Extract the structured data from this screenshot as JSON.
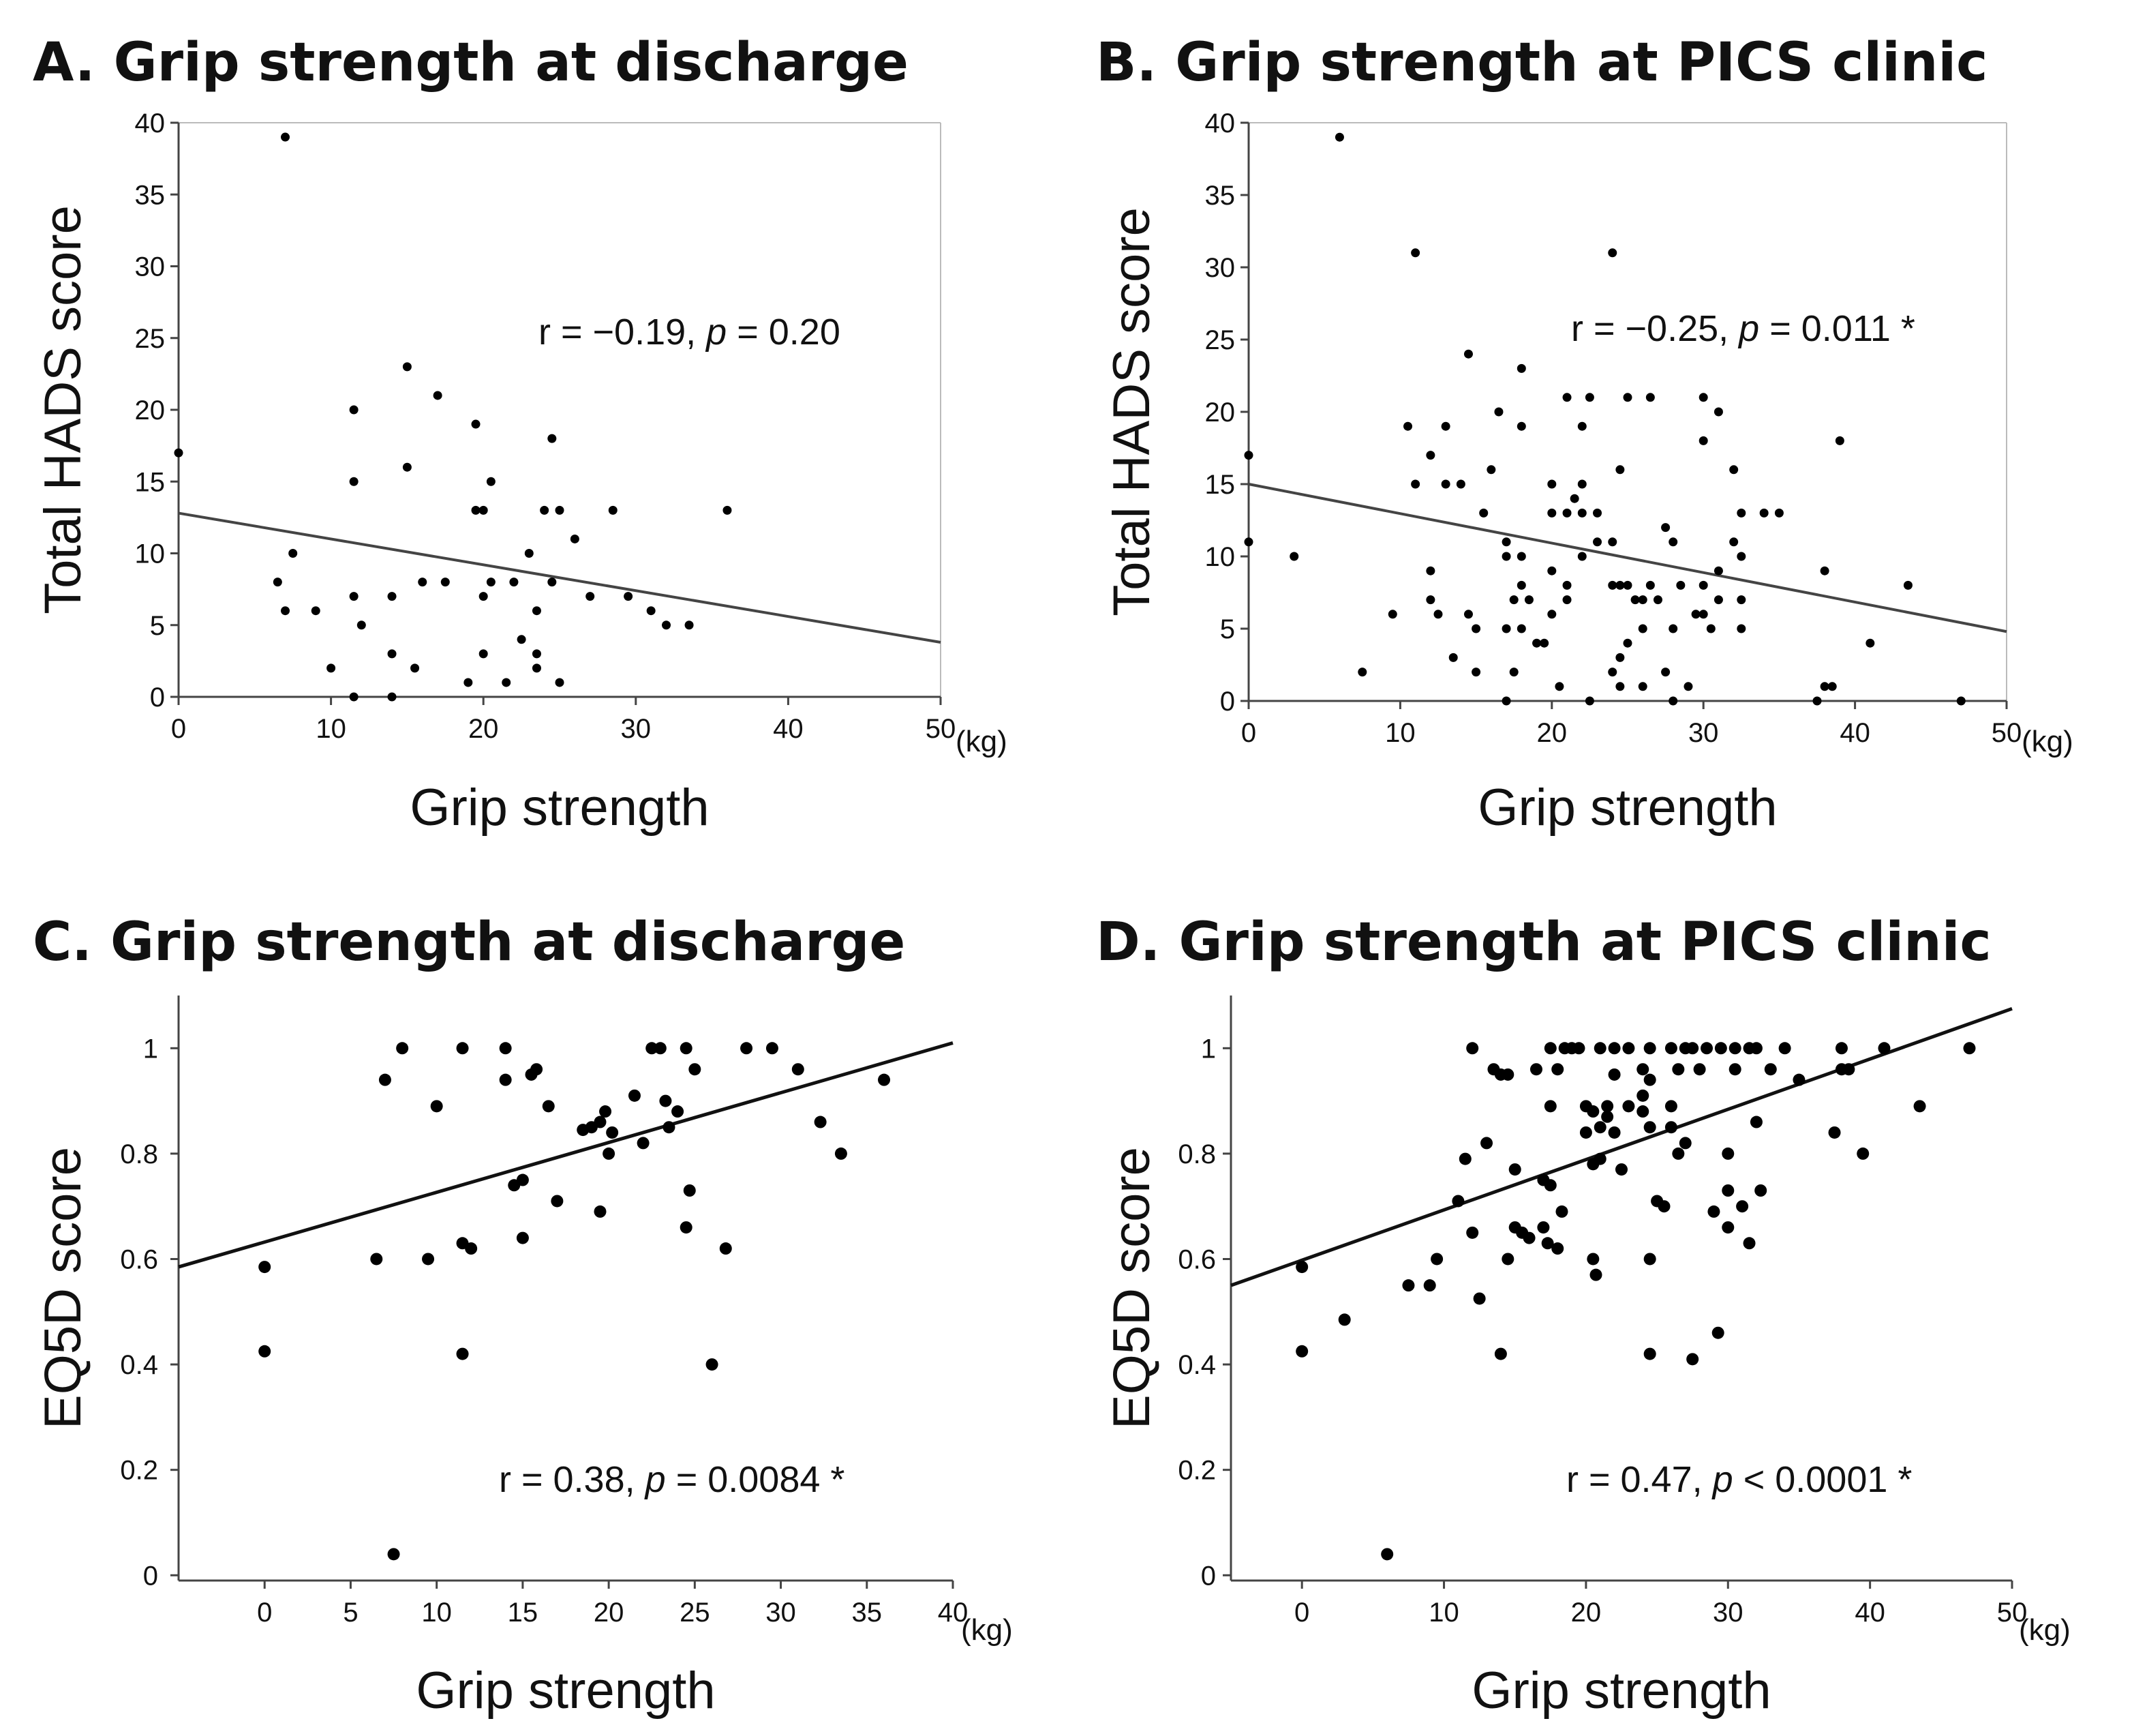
{
  "chart_data": [
    {
      "id": "A",
      "type": "scatter",
      "title": "A. Grip strength at discharge",
      "xlabel": "Grip strength",
      "ylabel": "Total HADS score",
      "x_unit": "(kg)",
      "xlim": [
        0,
        50
      ],
      "ylim": [
        0,
        40
      ],
      "xticks": [
        0,
        10,
        20,
        30,
        40,
        50
      ],
      "yticks": [
        0,
        5,
        10,
        15,
        20,
        25,
        30,
        35,
        40
      ],
      "ytick_labels": [
        "0",
        "5",
        "10",
        "15",
        "20",
        "25",
        "30",
        "35",
        "40"
      ],
      "grid": false,
      "annotation": {
        "r_text": "r = −0.19, ",
        "p_symbol": "p",
        "p_text": " = 0.20",
        "sig": ""
      },
      "fit_line": {
        "x": [
          0,
          50
        ],
        "y": [
          12.8,
          3.8
        ]
      },
      "points": [
        [
          0,
          17
        ],
        [
          7,
          39
        ],
        [
          6.5,
          8
        ],
        [
          7,
          6
        ],
        [
          7.5,
          10
        ],
        [
          9,
          6
        ],
        [
          10,
          2
        ],
        [
          11.5,
          20
        ],
        [
          11.5,
          15
        ],
        [
          11.5,
          7
        ],
        [
          11.5,
          0
        ],
        [
          12,
          5
        ],
        [
          14,
          3
        ],
        [
          14,
          7
        ],
        [
          14,
          0
        ],
        [
          15,
          23
        ],
        [
          15,
          16
        ],
        [
          15.5,
          2
        ],
        [
          16,
          8
        ],
        [
          17,
          21
        ],
        [
          17.5,
          8
        ],
        [
          19,
          1
        ],
        [
          19.5,
          19
        ],
        [
          19.5,
          13
        ],
        [
          20,
          13
        ],
        [
          20,
          7
        ],
        [
          20,
          3
        ],
        [
          20.5,
          8
        ],
        [
          20.5,
          15
        ],
        [
          21.5,
          1
        ],
        [
          22,
          8
        ],
        [
          22.5,
          4
        ],
        [
          23,
          10
        ],
        [
          23.5,
          2
        ],
        [
          24,
          13
        ],
        [
          24.5,
          18
        ],
        [
          24.5,
          8
        ],
        [
          25,
          13
        ],
        [
          25,
          1
        ],
        [
          26,
          11
        ],
        [
          27,
          7
        ],
        [
          28.5,
          13
        ],
        [
          29.5,
          7
        ],
        [
          31,
          6
        ],
        [
          32,
          5
        ],
        [
          33.5,
          5
        ],
        [
          36,
          13
        ],
        [
          23.5,
          6
        ],
        [
          23.5,
          3
        ]
      ]
    },
    {
      "id": "B",
      "type": "scatter",
      "title": "B. Grip strength at PICS clinic",
      "xlabel": "Grip strength",
      "ylabel": "Total HADS score",
      "x_unit": "(kg)",
      "xlim": [
        0,
        50
      ],
      "ylim": [
        0,
        40
      ],
      "xticks": [
        0,
        10,
        20,
        30,
        40,
        50
      ],
      "yticks": [
        0,
        5,
        10,
        15,
        20,
        25,
        30,
        35,
        40
      ],
      "ytick_labels": [
        "0",
        "5",
        "10",
        "15",
        "20",
        "25",
        "30",
        "35",
        "40"
      ],
      "grid": false,
      "annotation": {
        "r_text": "r = −0.25, ",
        "p_symbol": "p",
        "p_text": " = 0.011 ",
        "sig": "*"
      },
      "fit_line": {
        "x": [
          0,
          50
        ],
        "y": [
          15.0,
          4.8
        ]
      },
      "points": [
        [
          0,
          17
        ],
        [
          0,
          11
        ],
        [
          3,
          10
        ],
        [
          6,
          39
        ],
        [
          7.5,
          2
        ],
        [
          9.5,
          6
        ],
        [
          10.5,
          19
        ],
        [
          11,
          31
        ],
        [
          11,
          15
        ],
        [
          12,
          17
        ],
        [
          12,
          9
        ],
        [
          12,
          7
        ],
        [
          12.5,
          6
        ],
        [
          13,
          19
        ],
        [
          13,
          15
        ],
        [
          13.5,
          3
        ],
        [
          14,
          15
        ],
        [
          14.5,
          24
        ],
        [
          14.5,
          6
        ],
        [
          15,
          2
        ],
        [
          15,
          5
        ],
        [
          15.5,
          13
        ],
        [
          16,
          16
        ],
        [
          16.5,
          20
        ],
        [
          17,
          5
        ],
        [
          17,
          11
        ],
        [
          17,
          10
        ],
        [
          17,
          0
        ],
        [
          17.5,
          7
        ],
        [
          17.5,
          2
        ],
        [
          18,
          23
        ],
        [
          18,
          19
        ],
        [
          18,
          10
        ],
        [
          18,
          8
        ],
        [
          18,
          5
        ],
        [
          18.5,
          7
        ],
        [
          19,
          4
        ],
        [
          19.5,
          4
        ],
        [
          20,
          13
        ],
        [
          20,
          15
        ],
        [
          20,
          9
        ],
        [
          20,
          6
        ],
        [
          20.5,
          1
        ],
        [
          21,
          21
        ],
        [
          21,
          13
        ],
        [
          21,
          8
        ],
        [
          21,
          7
        ],
        [
          21.5,
          14
        ],
        [
          22,
          19
        ],
        [
          22,
          15
        ],
        [
          22,
          10
        ],
        [
          22,
          13
        ],
        [
          22.5,
          21
        ],
        [
          22.5,
          0
        ],
        [
          23,
          13
        ],
        [
          23,
          11
        ],
        [
          24,
          31
        ],
        [
          24,
          11
        ],
        [
          24,
          8
        ],
        [
          24,
          2
        ],
        [
          24.5,
          16
        ],
        [
          24.5,
          8
        ],
        [
          24.5,
          3
        ],
        [
          24.5,
          1
        ],
        [
          25,
          21
        ],
        [
          25,
          8
        ],
        [
          25,
          4
        ],
        [
          25.5,
          7
        ],
        [
          26,
          7
        ],
        [
          26,
          5
        ],
        [
          26,
          1
        ],
        [
          26.5,
          21
        ],
        [
          26.5,
          8
        ],
        [
          27,
          7
        ],
        [
          27.5,
          12
        ],
        [
          27.5,
          2
        ],
        [
          28,
          11
        ],
        [
          28,
          5
        ],
        [
          28,
          0
        ],
        [
          28.5,
          8
        ],
        [
          29,
          1
        ],
        [
          29.5,
          6
        ],
        [
          30,
          21
        ],
        [
          30,
          18
        ],
        [
          30,
          8
        ],
        [
          30,
          6
        ],
        [
          30.5,
          5
        ],
        [
          31,
          20
        ],
        [
          31,
          9
        ],
        [
          31,
          7
        ],
        [
          32,
          16
        ],
        [
          32,
          11
        ],
        [
          32.5,
          13
        ],
        [
          32.5,
          10
        ],
        [
          32.5,
          7
        ],
        [
          32.5,
          5
        ],
        [
          34,
          13
        ],
        [
          35,
          13
        ],
        [
          37.5,
          0
        ],
        [
          38,
          9
        ],
        [
          38,
          1
        ],
        [
          38.5,
          1
        ],
        [
          39,
          18
        ],
        [
          41,
          4
        ],
        [
          43.5,
          8
        ],
        [
          47,
          0
        ]
      ]
    },
    {
      "id": "C",
      "type": "scatter",
      "title": "C. Grip strength at discharge",
      "xlabel": "Grip strength",
      "ylabel": "EQ5D score",
      "x_unit": "(kg)",
      "xlim": [
        -5,
        40
      ],
      "ylim": [
        -0.01,
        1.1
      ],
      "xticks": [
        0,
        5,
        10,
        15,
        20,
        25,
        30,
        35,
        40
      ],
      "yticks": [
        0,
        0.2,
        0.4,
        0.6,
        0.8,
        1
      ],
      "ytick_labels": [
        "0",
        "0.2",
        "0.4",
        "0.6",
        "0.8",
        "1"
      ],
      "grid": false,
      "annotation": {
        "r_text": "r = 0.38, ",
        "p_symbol": "p",
        "p_text": " = 0.0084 ",
        "sig": "*"
      },
      "fit_line": {
        "x": [
          -5,
          40
        ],
        "y": [
          0.585,
          1.01
        ]
      },
      "points": [
        [
          0,
          0.585
        ],
        [
          0,
          0.425
        ],
        [
          6.5,
          0.6
        ],
        [
          7,
          0.94
        ],
        [
          7.5,
          0.04
        ],
        [
          8,
          1
        ],
        [
          9.5,
          0.6
        ],
        [
          10,
          0.89
        ],
        [
          11.5,
          1
        ],
        [
          11.5,
          0.63
        ],
        [
          11.5,
          0.42
        ],
        [
          12,
          0.62
        ],
        [
          14,
          1
        ],
        [
          14,
          0.94
        ],
        [
          14.5,
          0.74
        ],
        [
          15,
          0.75
        ],
        [
          15,
          0.64
        ],
        [
          15.5,
          0.95
        ],
        [
          15.8,
          0.96
        ],
        [
          16.5,
          0.89
        ],
        [
          17,
          0.71
        ],
        [
          18.5,
          0.845
        ],
        [
          19,
          0.85
        ],
        [
          19.5,
          0.86
        ],
        [
          19.5,
          0.69
        ],
        [
          19.8,
          0.88
        ],
        [
          20,
          0.8
        ],
        [
          20.2,
          0.84
        ],
        [
          21.5,
          0.91
        ],
        [
          22,
          0.82
        ],
        [
          22.5,
          1
        ],
        [
          23,
          1
        ],
        [
          23.3,
          0.9
        ],
        [
          23.5,
          0.85
        ],
        [
          24,
          0.88
        ],
        [
          24.5,
          1
        ],
        [
          24.5,
          0.66
        ],
        [
          24.7,
          0.73
        ],
        [
          25,
          0.96
        ],
        [
          26,
          0.4
        ],
        [
          26.8,
          0.62
        ],
        [
          28,
          1
        ],
        [
          29.5,
          1
        ],
        [
          31,
          0.96
        ],
        [
          32.3,
          0.86
        ],
        [
          33.5,
          0.8
        ],
        [
          36,
          0.94
        ]
      ]
    },
    {
      "id": "D",
      "type": "scatter",
      "title": "D. Grip strength at PICS clinic",
      "xlabel": "Grip strength",
      "ylabel": "EQ5D score",
      "x_unit": "(kg)",
      "xlim": [
        -5,
        50
      ],
      "ylim": [
        -0.01,
        1.1
      ],
      "xticks": [
        0,
        10,
        20,
        30,
        40,
        50
      ],
      "yticks": [
        0,
        0.2,
        0.4,
        0.6,
        0.8,
        1
      ],
      "ytick_labels": [
        "0",
        "0.2",
        "0.4",
        "0.6",
        "0.8",
        "1"
      ],
      "grid": false,
      "annotation": {
        "r_text": "r = 0.47, ",
        "p_symbol": "p",
        "p_text": " < 0.0001 ",
        "sig": "*"
      },
      "fit_line": {
        "x": [
          -5,
          50
        ],
        "y": [
          0.55,
          1.075
        ]
      },
      "points": [
        [
          0,
          0.585
        ],
        [
          0,
          0.425
        ],
        [
          3,
          0.485
        ],
        [
          6,
          0.04
        ],
        [
          7.5,
          0.55
        ],
        [
          9,
          0.55
        ],
        [
          9.5,
          0.6
        ],
        [
          11,
          0.71
        ],
        [
          11.5,
          0.79
        ],
        [
          12,
          1
        ],
        [
          12,
          0.65
        ],
        [
          12.5,
          0.525
        ],
        [
          13,
          0.82
        ],
        [
          13.5,
          0.96
        ],
        [
          14,
          0.95
        ],
        [
          14,
          0.42
        ],
        [
          14.5,
          0.95
        ],
        [
          14.5,
          0.6
        ],
        [
          15,
          0.77
        ],
        [
          15,
          0.66
        ],
        [
          15.5,
          0.65
        ],
        [
          16,
          0.64
        ],
        [
          16.5,
          0.96
        ],
        [
          17,
          0.75
        ],
        [
          17,
          0.66
        ],
        [
          17.3,
          0.63
        ],
        [
          17.5,
          1
        ],
        [
          17.5,
          0.89
        ],
        [
          17.5,
          0.74
        ],
        [
          18,
          0.96
        ],
        [
          18,
          0.62
        ],
        [
          18.3,
          0.69
        ],
        [
          18.5,
          1
        ],
        [
          19,
          1
        ],
        [
          19.5,
          1
        ],
        [
          20,
          0.89
        ],
        [
          20,
          0.84
        ],
        [
          20.5,
          0.88
        ],
        [
          20.5,
          0.78
        ],
        [
          20.5,
          0.6
        ],
        [
          20.7,
          0.57
        ],
        [
          21,
          1
        ],
        [
          21,
          0.85
        ],
        [
          21,
          0.79
        ],
        [
          21.5,
          0.87
        ],
        [
          21.5,
          0.89
        ],
        [
          22,
          1
        ],
        [
          22,
          0.95
        ],
        [
          22,
          0.84
        ],
        [
          22.5,
          0.77
        ],
        [
          23,
          1
        ],
        [
          23,
          0.89
        ],
        [
          24,
          0.96
        ],
        [
          24,
          0.91
        ],
        [
          24,
          0.88
        ],
        [
          24.5,
          1
        ],
        [
          24.5,
          0.94
        ],
        [
          24.5,
          0.85
        ],
        [
          24.5,
          0.6
        ],
        [
          24.5,
          0.42
        ],
        [
          25,
          0.71
        ],
        [
          25.5,
          0.7
        ],
        [
          26,
          1
        ],
        [
          26,
          0.89
        ],
        [
          26,
          0.85
        ],
        [
          26.5,
          0.8
        ],
        [
          26.5,
          0.96
        ],
        [
          27,
          1
        ],
        [
          27,
          0.82
        ],
        [
          27.5,
          1
        ],
        [
          27.5,
          0.41
        ],
        [
          28,
          0.96
        ],
        [
          28.5,
          1
        ],
        [
          29,
          0.69
        ],
        [
          29.3,
          0.46
        ],
        [
          29.5,
          1
        ],
        [
          30,
          0.8
        ],
        [
          30,
          0.73
        ],
        [
          30,
          0.66
        ],
        [
          30.5,
          1
        ],
        [
          30.5,
          0.96
        ],
        [
          31,
          0.7
        ],
        [
          31.5,
          1
        ],
        [
          31.5,
          0.63
        ],
        [
          32,
          1
        ],
        [
          32,
          0.86
        ],
        [
          32.3,
          0.73
        ],
        [
          33,
          0.96
        ],
        [
          34,
          1
        ],
        [
          35,
          0.94
        ],
        [
          37.5,
          0.84
        ],
        [
          38,
          1
        ],
        [
          38,
          0.96
        ],
        [
          38.5,
          0.96
        ],
        [
          39.5,
          0.8
        ],
        [
          41,
          1
        ],
        [
          43.5,
          0.89
        ],
        [
          47,
          1
        ]
      ]
    }
  ]
}
